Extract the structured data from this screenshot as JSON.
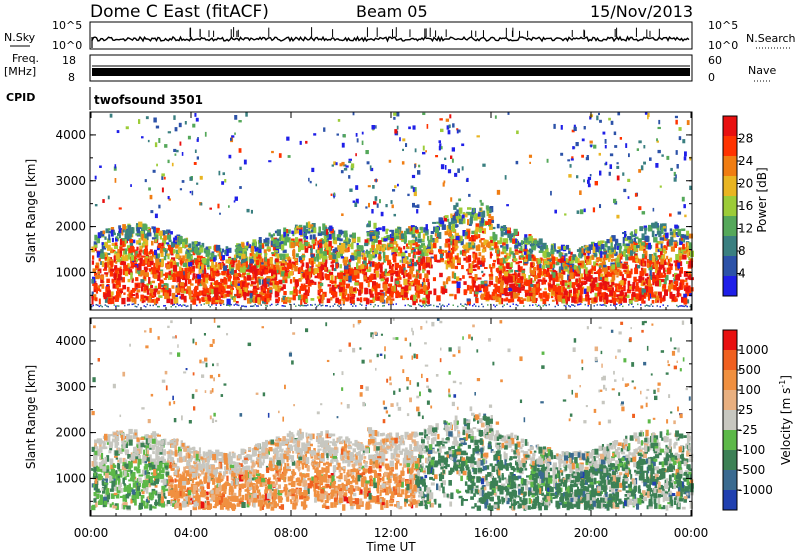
{
  "header": {
    "station": "Dome C East (fitACF)",
    "beam": "Beam 05",
    "date": "15/Nov/2013"
  },
  "top_panels": {
    "nsky_label": "N.Sky",
    "nsky_ticks": [
      "10^5",
      "10^0"
    ],
    "nsearch_label": "N.Search",
    "nsearch_ticks": [
      "10^5",
      "10^0"
    ],
    "freq_label": "Freq.",
    "freq_unit": "[MHz]",
    "freq_ticks": [
      "18",
      "8"
    ],
    "nave_label": "Nave",
    "nave_ticks": [
      "60",
      "0"
    ],
    "cpid_label": "CPID",
    "cpid_value": "twofsound 3501"
  },
  "chart_data": [
    {
      "type": "heatmap",
      "name": "power",
      "xlabel": "Time UT",
      "ylabel": "Slant Range [km]",
      "x_ticks": [
        "00:00",
        "04:00",
        "08:00",
        "12:00",
        "16:00",
        "20:00",
        "00:00"
      ],
      "xlim_hours": [
        0,
        24
      ],
      "y_ticks": [
        "1000",
        "2000",
        "3000",
        "4000"
      ],
      "ylim": [
        180,
        4500
      ],
      "colorbar": {
        "label": "Power [dB]",
        "ticks": [
          "4",
          "8",
          "12",
          "16",
          "20",
          "24",
          "28"
        ],
        "range": [
          0,
          32
        ],
        "colors": [
          "#1f1fe8",
          "#2c52a8",
          "#3a7f80",
          "#55a85a",
          "#9ccc38",
          "#e9b522",
          "#f07d12",
          "#ff3300",
          "#e81010"
        ]
      }
    },
    {
      "type": "heatmap",
      "name": "velocity",
      "xlabel": "Time UT",
      "ylabel": "Slant Range [km]",
      "x_ticks": [
        "00:00",
        "04:00",
        "08:00",
        "12:00",
        "16:00",
        "20:00",
        "00:00"
      ],
      "xlim_hours": [
        0,
        24
      ],
      "y_ticks": [
        "1000",
        "2000",
        "3000",
        "4000"
      ],
      "ylim": [
        180,
        4500
      ],
      "colorbar": {
        "label": "Velocity [m s",
        "label_sup": "-1",
        "label_end": "]",
        "ticks": [
          "1000",
          "500",
          "100",
          "25",
          "-25",
          "-100",
          "-500",
          "-1000"
        ],
        "colors": [
          "#2040b0",
          "#3a6a90",
          "#3c8055",
          "#5cb848",
          "#c7c7c0",
          "#e9b080",
          "#f09040",
          "#f06020",
          "#e81010"
        ]
      }
    }
  ]
}
